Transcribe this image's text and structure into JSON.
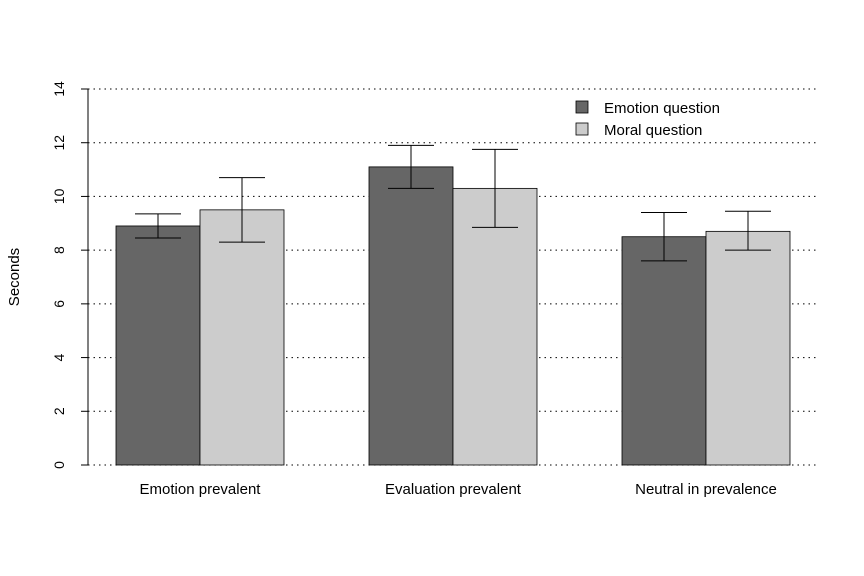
{
  "chart_data": {
    "type": "bar",
    "title": "",
    "xlabel": "",
    "ylabel": "Seconds",
    "ylim": [
      0,
      14
    ],
    "yticks": [
      0,
      2,
      4,
      6,
      8,
      10,
      12,
      14
    ],
    "grid": true,
    "legend_position": "top-right",
    "categories": [
      "Emotion prevalent",
      "Evaluation prevalent",
      "Neutral in prevalence"
    ],
    "series": [
      {
        "name": "Emotion question",
        "color": "#666666",
        "values": [
          8.9,
          11.1,
          8.5
        ],
        "error_low": [
          8.45,
          10.3,
          7.6
        ],
        "error_high": [
          9.35,
          11.9,
          9.4
        ]
      },
      {
        "name": "Moral question",
        "color": "#cccccc",
        "values": [
          9.5,
          10.3,
          8.7
        ],
        "error_low": [
          8.3,
          8.85,
          8.0
        ],
        "error_high": [
          10.7,
          11.75,
          9.45
        ]
      }
    ]
  }
}
